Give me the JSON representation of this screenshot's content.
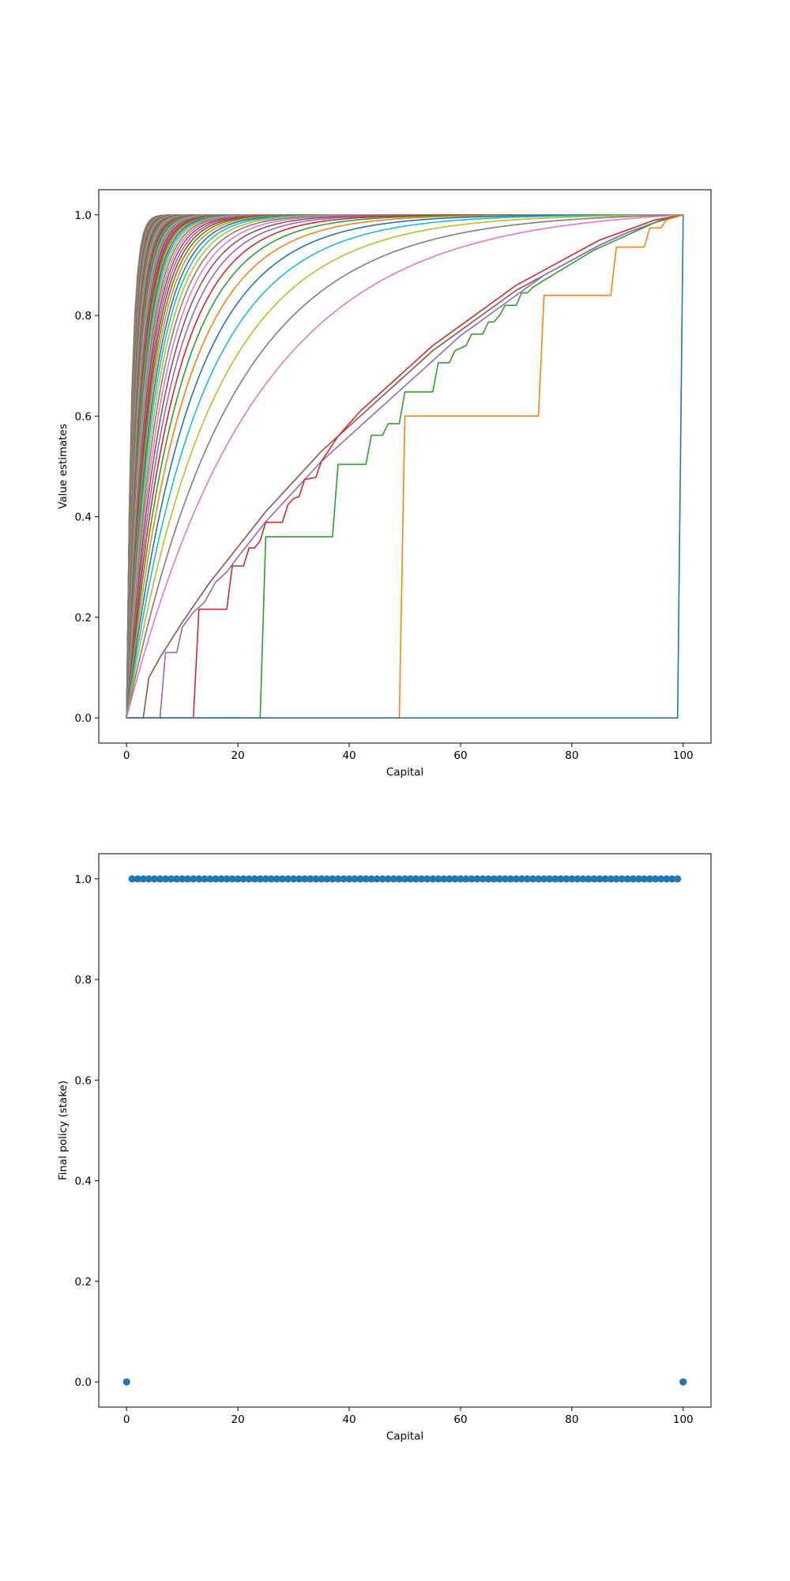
{
  "chart_data": [
    {
      "type": "line",
      "title": "",
      "xlabel": "Capital",
      "ylabel": "Value estimates",
      "xlim": [
        -5,
        105
      ],
      "ylim": [
        -0.05,
        1.05
      ],
      "x_ticks": [
        "0",
        "20",
        "40",
        "60",
        "80",
        "100"
      ],
      "y_ticks": [
        "0.0",
        "0.2",
        "0.4",
        "0.6",
        "0.8",
        "1.0"
      ],
      "grid": false,
      "legend": "none",
      "x_range": [
        0,
        100
      ],
      "series_count": 80,
      "series": [
        {
          "points": [
            [
              0,
              0
            ],
            [
              99,
              0
            ],
            [
              100,
              1
            ]
          ]
        },
        {
          "points": [
            [
              0,
              0
            ],
            [
              49,
              0
            ],
            [
              50,
              0.6
            ],
            [
              74,
              0.6
            ],
            [
              75,
              0.84
            ],
            [
              87,
              0.84
            ],
            [
              88,
              0.936
            ],
            [
              93,
              0.936
            ],
            [
              94,
              0.974
            ],
            [
              96,
              0.974
            ],
            [
              97,
              0.99
            ],
            [
              100,
              1
            ]
          ]
        },
        {
          "points": [
            [
              0,
              0
            ],
            [
              24,
              0
            ],
            [
              25,
              0.36
            ],
            [
              37,
              0.36
            ],
            [
              38,
              0.504
            ],
            [
              43,
              0.504
            ],
            [
              44,
              0.562
            ],
            [
              46,
              0.562
            ],
            [
              47,
              0.585
            ],
            [
              49,
              0.585
            ],
            [
              50,
              0.648
            ],
            [
              55,
              0.648
            ],
            [
              56,
              0.706
            ],
            [
              58,
              0.706
            ],
            [
              59,
              0.73
            ],
            [
              61,
              0.74
            ],
            [
              62,
              0.763
            ],
            [
              64,
              0.763
            ],
            [
              65,
              0.787
            ],
            [
              66,
              0.787
            ],
            [
              67,
              0.8
            ],
            [
              68,
              0.82
            ],
            [
              70,
              0.82
            ],
            [
              71,
              0.845
            ],
            [
              72,
              0.845
            ],
            [
              73,
              0.856
            ],
            [
              75,
              0.87
            ],
            [
              78,
              0.89
            ],
            [
              81,
              0.91
            ],
            [
              84,
              0.93
            ],
            [
              88,
              0.95
            ],
            [
              92,
              0.97
            ],
            [
              96,
              0.99
            ],
            [
              100,
              1
            ]
          ]
        },
        {
          "points": [
            [
              0,
              0
            ],
            [
              12,
              0
            ],
            [
              13,
              0.216
            ],
            [
              18,
              0.216
            ],
            [
              19,
              0.302
            ],
            [
              21,
              0.302
            ],
            [
              22,
              0.338
            ],
            [
              23,
              0.338
            ],
            [
              24,
              0.352
            ],
            [
              25,
              0.389
            ],
            [
              28,
              0.389
            ],
            [
              29,
              0.424
            ],
            [
              30,
              0.436
            ],
            [
              31,
              0.44
            ],
            [
              32,
              0.474
            ],
            [
              34,
              0.478
            ],
            [
              35,
              0.51
            ],
            [
              38,
              0.56
            ],
            [
              42,
              0.61
            ],
            [
              46,
              0.65
            ],
            [
              50,
              0.69
            ],
            [
              55,
              0.74
            ],
            [
              60,
              0.78
            ],
            [
              65,
              0.82
            ],
            [
              70,
              0.86
            ],
            [
              75,
              0.89
            ],
            [
              80,
              0.92
            ],
            [
              85,
              0.95
            ],
            [
              90,
              0.97
            ],
            [
              95,
              0.99
            ],
            [
              100,
              1
            ]
          ]
        },
        {
          "points": [
            [
              0,
              0
            ],
            [
              6,
              0
            ],
            [
              7,
              0.13
            ],
            [
              9,
              0.13
            ],
            [
              10,
              0.18
            ],
            [
              12,
              0.21
            ],
            [
              14,
              0.23
            ],
            [
              16,
              0.27
            ],
            [
              18,
              0.29
            ],
            [
              20,
              0.32
            ],
            [
              25,
              0.39
            ],
            [
              30,
              0.45
            ],
            [
              35,
              0.51
            ],
            [
              40,
              0.56
            ],
            [
              45,
              0.61
            ],
            [
              50,
              0.66
            ],
            [
              55,
              0.71
            ],
            [
              60,
              0.76
            ],
            [
              65,
              0.8
            ],
            [
              70,
              0.84
            ],
            [
              75,
              0.88
            ],
            [
              80,
              0.91
            ],
            [
              85,
              0.94
            ],
            [
              90,
              0.965
            ],
            [
              95,
              0.985
            ],
            [
              100,
              1
            ]
          ]
        },
        {
          "points": [
            [
              0,
              0
            ],
            [
              3,
              0
            ],
            [
              4,
              0.08
            ],
            [
              6,
              0.12
            ],
            [
              10,
              0.19
            ],
            [
              15,
              0.27
            ],
            [
              20,
              0.34
            ],
            [
              25,
              0.41
            ],
            [
              30,
              0.47
            ],
            [
              35,
              0.53
            ],
            [
              40,
              0.58
            ],
            [
              45,
              0.63
            ],
            [
              50,
              0.68
            ],
            [
              55,
              0.73
            ],
            [
              60,
              0.77
            ],
            [
              65,
              0.81
            ],
            [
              70,
              0.85
            ],
            [
              75,
              0.88
            ],
            [
              80,
              0.91
            ],
            [
              85,
              0.94
            ],
            [
              90,
              0.965
            ],
            [
              95,
              0.985
            ],
            [
              100,
              1
            ]
          ]
        }
      ]
    },
    {
      "type": "scatter",
      "title": "",
      "xlabel": "Capital",
      "ylabel": "Final policy (stake)",
      "xlim": [
        -5,
        105
      ],
      "ylim": [
        -0.05,
        1.05
      ],
      "x_ticks": [
        "0",
        "20",
        "40",
        "60",
        "80",
        "100"
      ],
      "y_ticks": [
        "0.0",
        "0.2",
        "0.4",
        "0.6",
        "0.8",
        "1.0"
      ],
      "grid": false,
      "legend": "none",
      "x": [
        0,
        1,
        2,
        3,
        4,
        5,
        6,
        7,
        8,
        9,
        10,
        11,
        12,
        13,
        14,
        15,
        16,
        17,
        18,
        19,
        20,
        21,
        22,
        23,
        24,
        25,
        26,
        27,
        28,
        29,
        30,
        31,
        32,
        33,
        34,
        35,
        36,
        37,
        38,
        39,
        40,
        41,
        42,
        43,
        44,
        45,
        46,
        47,
        48,
        49,
        50,
        51,
        52,
        53,
        54,
        55,
        56,
        57,
        58,
        59,
        60,
        61,
        62,
        63,
        64,
        65,
        66,
        67,
        68,
        69,
        70,
        71,
        72,
        73,
        74,
        75,
        76,
        77,
        78,
        79,
        80,
        81,
        82,
        83,
        84,
        85,
        86,
        87,
        88,
        89,
        90,
        91,
        92,
        93,
        94,
        95,
        96,
        97,
        98,
        99,
        100
      ],
      "y": [
        0,
        1,
        1,
        1,
        1,
        1,
        1,
        1,
        1,
        1,
        1,
        1,
        1,
        1,
        1,
        1,
        1,
        1,
        1,
        1,
        1,
        1,
        1,
        1,
        1,
        1,
        1,
        1,
        1,
        1,
        1,
        1,
        1,
        1,
        1,
        1,
        1,
        1,
        1,
        1,
        1,
        1,
        1,
        1,
        1,
        1,
        1,
        1,
        1,
        1,
        1,
        1,
        1,
        1,
        1,
        1,
        1,
        1,
        1,
        1,
        1,
        1,
        1,
        1,
        1,
        1,
        1,
        1,
        1,
        1,
        1,
        1,
        1,
        1,
        1,
        1,
        1,
        1,
        1,
        1,
        1,
        1,
        1,
        1,
        1,
        1,
        1,
        1,
        1,
        1,
        1,
        1,
        1,
        1,
        1,
        1,
        1,
        1,
        1,
        1,
        0
      ],
      "color": "#1f77b4"
    }
  ],
  "palette": [
    "#1f77b4",
    "#ff7f0e",
    "#2ca02c",
    "#d62728",
    "#9467bd",
    "#8c564b",
    "#e377c2",
    "#7f7f7f",
    "#bcbd22",
    "#17becf"
  ]
}
